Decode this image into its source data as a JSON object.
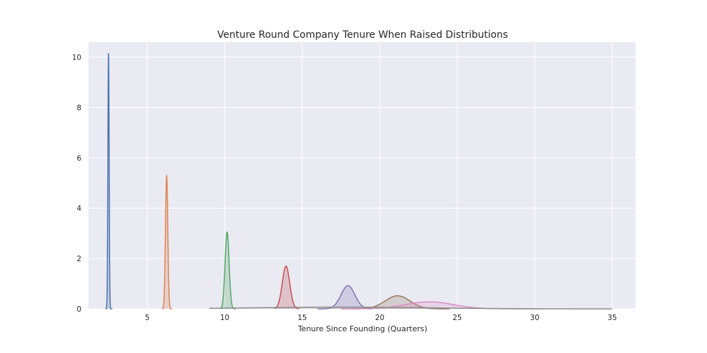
{
  "chart_data": {
    "type": "area",
    "title": "Venture Round Company Tenure When Raised Distributions",
    "xlabel": "Tenure Since Founding (Quarters)",
    "ylabel": "",
    "xlim": [
      1.2,
      36.5
    ],
    "ylim": [
      0,
      10.6
    ],
    "x_ticks": [
      "5",
      "10",
      "15",
      "20",
      "25",
      "30",
      "35"
    ],
    "y_ticks": [
      "0",
      "2",
      "4",
      "6",
      "8",
      "10"
    ],
    "grid": true,
    "legend": "none",
    "series": [
      {
        "color": "#4c72b0",
        "peak_x": 2.5,
        "peak_y": 10.15,
        "sigma": 0.04,
        "x_min": 2.3,
        "x_max": 2.75
      },
      {
        "color": "#dd8452",
        "peak_x": 6.25,
        "peak_y": 5.3,
        "sigma": 0.075,
        "x_min": 5.95,
        "x_max": 6.6
      },
      {
        "color": "#55a868",
        "peak_x": 10.15,
        "peak_y": 3.05,
        "sigma": 0.13,
        "x_min": 9.7,
        "x_max": 10.7
      },
      {
        "color": "#c44e52",
        "peak_x": 13.95,
        "peak_y": 1.7,
        "sigma": 0.24,
        "x_min": 13.2,
        "x_max": 14.8
      },
      {
        "color": "#8172b3",
        "peak_x": 17.95,
        "peak_y": 0.92,
        "sigma": 0.45,
        "x_min": 16.0,
        "x_max": 19.5
      },
      {
        "color": "#937860",
        "peak_x": 21.15,
        "peak_y": 0.52,
        "sigma": 0.8,
        "x_min": 18.2,
        "x_max": 24.5
      },
      {
        "color": "#da8bc3",
        "peak_x": 23.2,
        "peak_y": 0.28,
        "sigma": 1.55,
        "x_min": 17.5,
        "x_max": 30.5
      },
      {
        "color": "#8c8c8c",
        "peak_x": 17.5,
        "peak_y": 0.07,
        "sigma": 5.5,
        "x_min": 9.0,
        "x_max": 35.0
      }
    ]
  }
}
